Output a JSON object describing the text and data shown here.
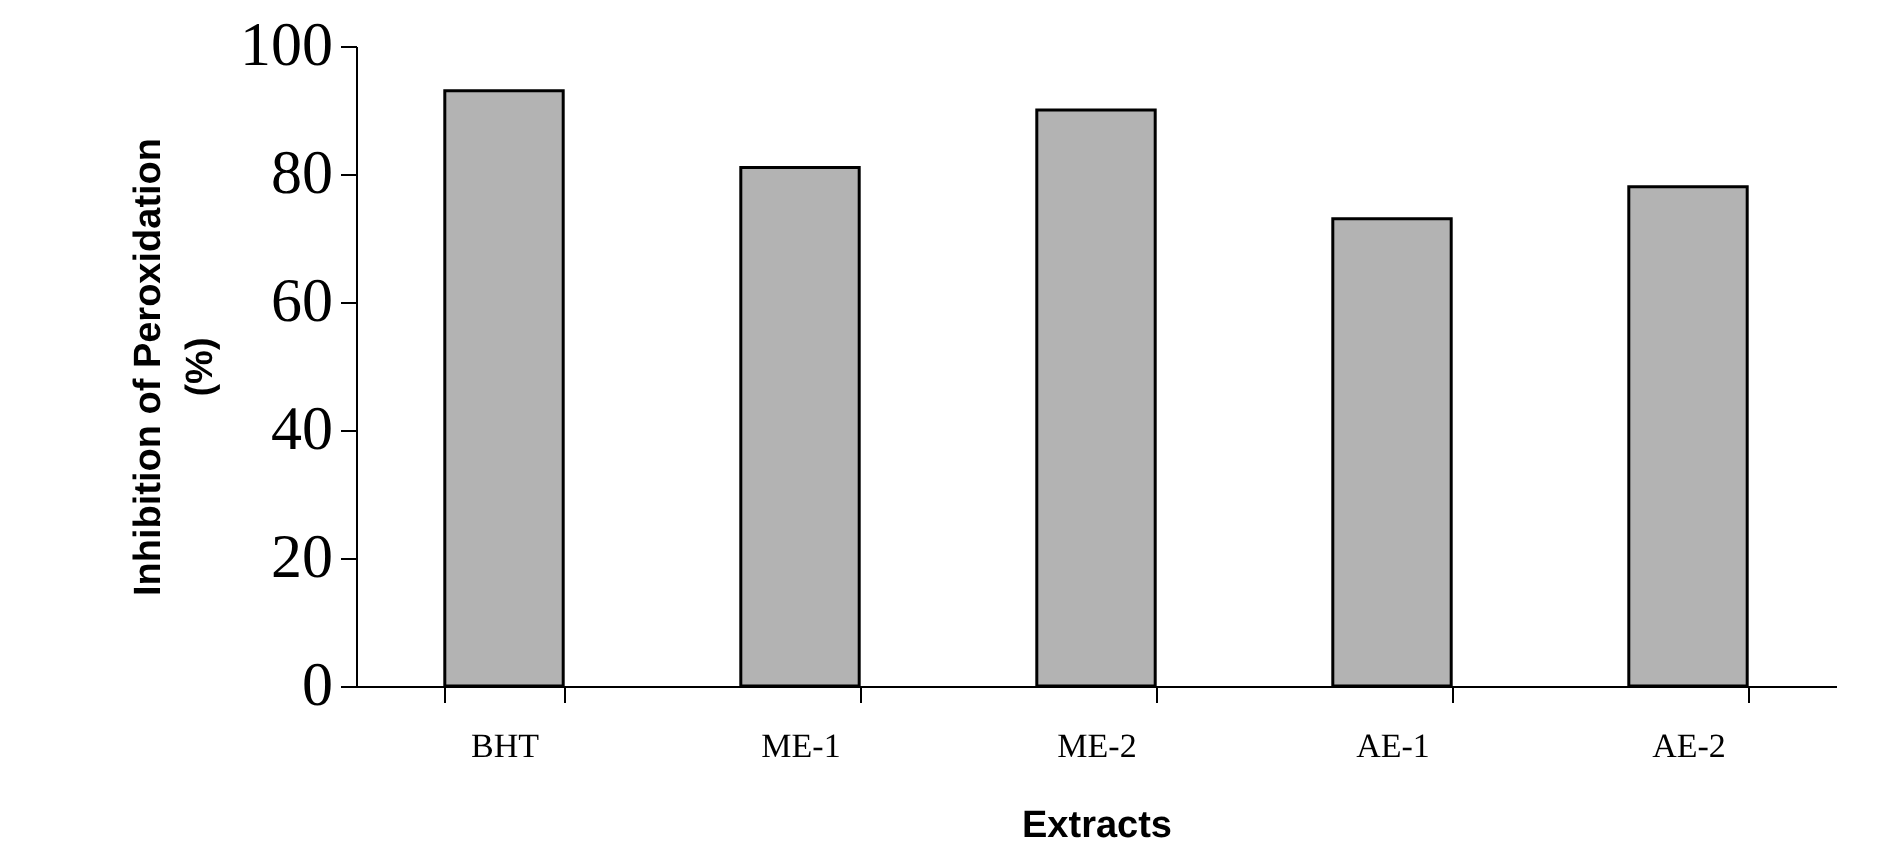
{
  "chart_data": {
    "type": "bar",
    "xlabel": "Extracts",
    "ylabel": "Inhibition of Peroxidation\n(%)",
    "categories": [
      "BHT",
      "ME-1",
      "ME-2",
      "AE-1",
      "AE-2"
    ],
    "values": [
      93,
      81,
      90,
      73,
      78
    ],
    "color": "#b3b3b3",
    "ylim": [
      0,
      100
    ],
    "yticks": [
      0,
      20,
      40,
      60,
      80,
      100
    ],
    "grid": false
  }
}
